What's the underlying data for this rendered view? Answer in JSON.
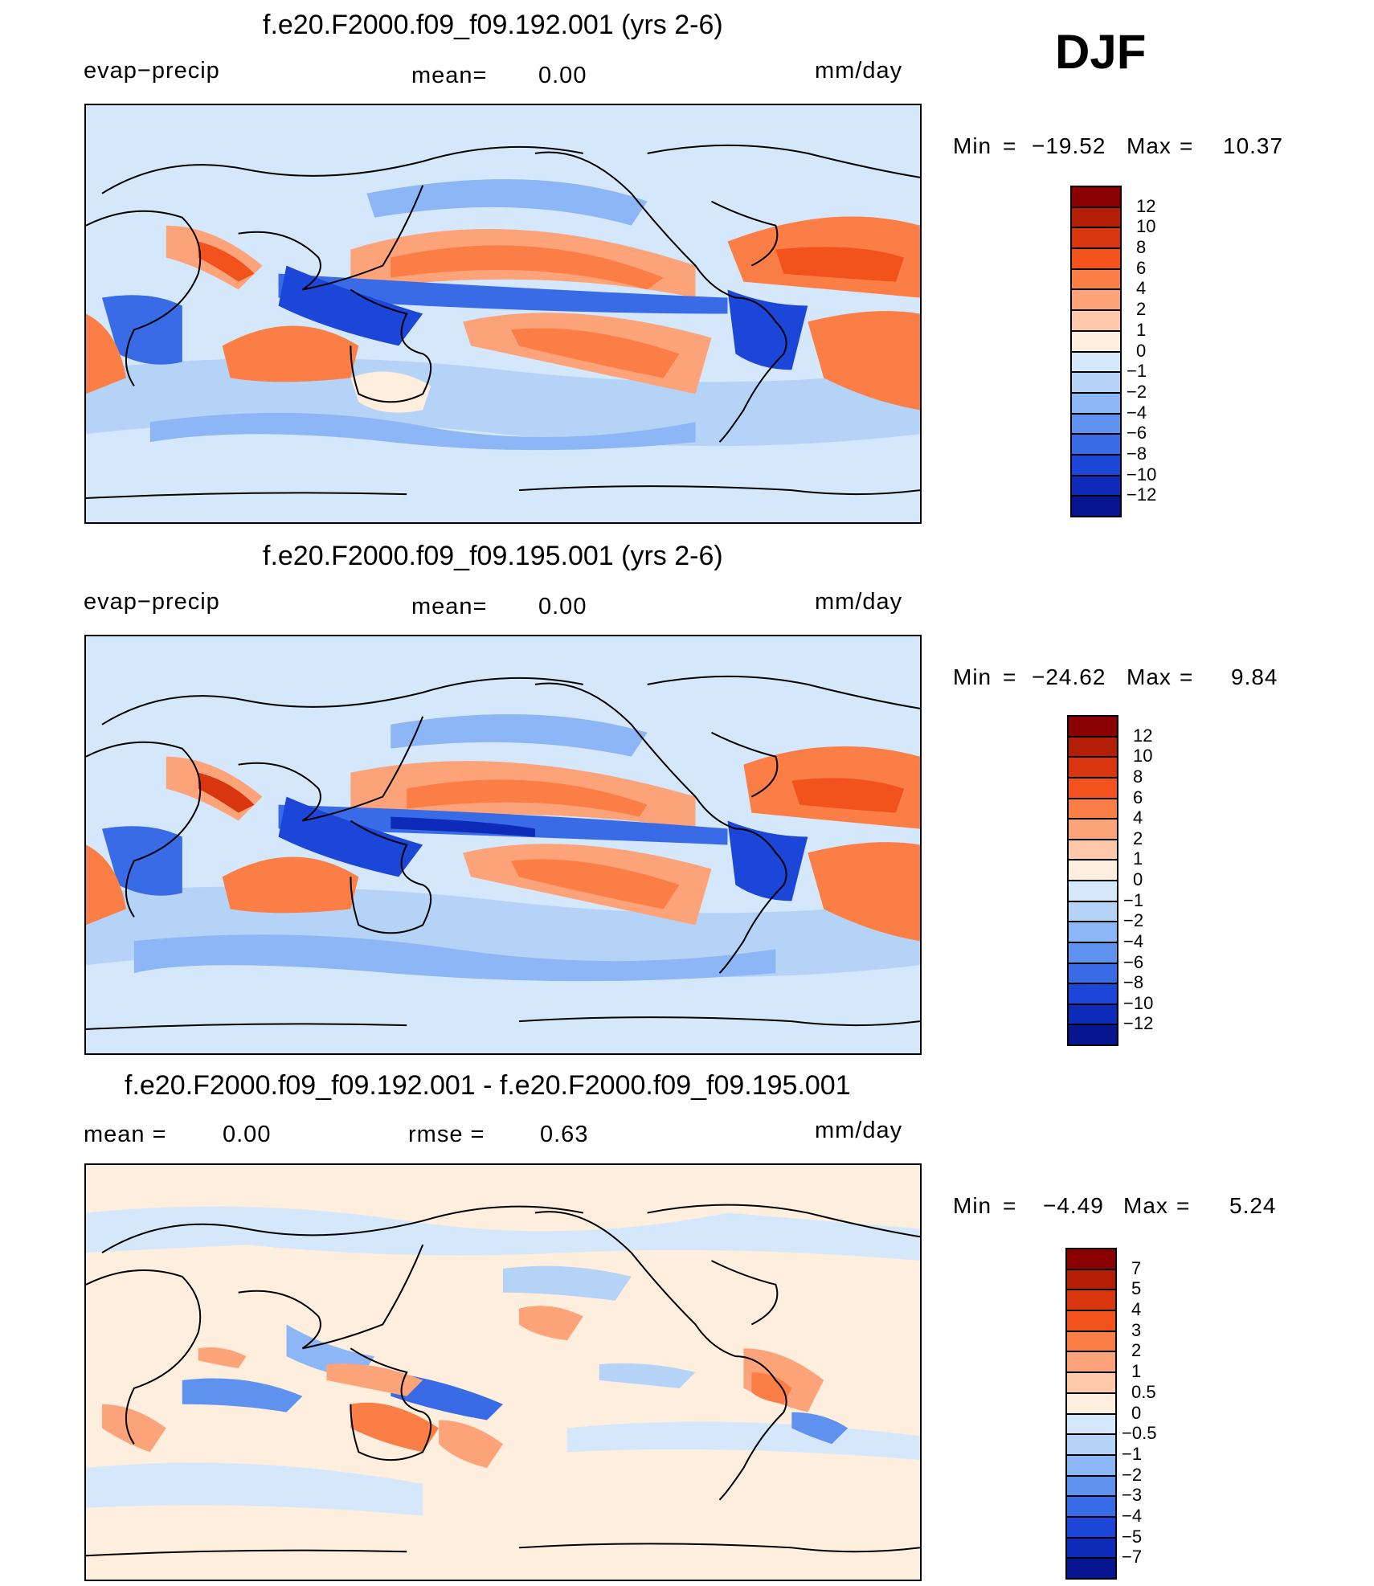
{
  "season_label": "DJF",
  "panels": [
    {
      "title": "f.e20.F2000.f09_f09.192.001 (yrs 2-6)",
      "left_label": "evap−precip",
      "mean_label": "mean=",
      "mean_value": "0.00",
      "units": "mm/day",
      "min_label": "Min",
      "eq1": "=",
      "min_value": "−19.52",
      "max_label": "Max",
      "eq2": "=",
      "max_value": "10.37",
      "colorbar": {
        "colors": [
          "#8b0000",
          "#b41e06",
          "#d8360e",
          "#f2521c",
          "#fa7e45",
          "#fca37a",
          "#fdc9aa",
          "#feeedd",
          "#d5e8fb",
          "#b4d3f7",
          "#8cb6f5",
          "#5f92ef",
          "#3a6be6",
          "#1c46d8",
          "#0e2ab8",
          "#071590"
        ],
        "labels": [
          "12",
          "10",
          "8",
          "6",
          "4",
          "2",
          "1",
          "0",
          "−1",
          "−2",
          "−4",
          "−6",
          "−8",
          "−10",
          "−12"
        ]
      }
    },
    {
      "title": "f.e20.F2000.f09_f09.195.001 (yrs 2-6)",
      "left_label": "evap−precip",
      "mean_label": "mean=",
      "mean_value": "0.00",
      "units": "mm/day",
      "min_label": "Min",
      "eq1": "=",
      "min_value": "−24.62",
      "max_label": "Max",
      "eq2": "=",
      "max_value": "9.84",
      "colorbar": {
        "colors": [
          "#8b0000",
          "#b41e06",
          "#d8360e",
          "#f2521c",
          "#fa7e45",
          "#fca37a",
          "#fdc9aa",
          "#feeedd",
          "#d5e8fb",
          "#b4d3f7",
          "#8cb6f5",
          "#5f92ef",
          "#3a6be6",
          "#1c46d8",
          "#0e2ab8",
          "#071590"
        ],
        "labels": [
          "12",
          "10",
          "8",
          "6",
          "4",
          "2",
          "1",
          "0",
          "−1",
          "−2",
          "−4",
          "−6",
          "−8",
          "−10",
          "−12"
        ]
      }
    },
    {
      "title": "f.e20.F2000.f09_f09.192.001 - f.e20.F2000.f09_f09.195.001",
      "left_label": "mean  =",
      "left_value": "0.00",
      "mean_label": "rmse  =",
      "mean_value": "0.63",
      "units": "mm/day",
      "min_label": "Min",
      "eq1": "=",
      "min_value": "−4.49",
      "max_label": "Max",
      "eq2": "=",
      "max_value": "5.24",
      "colorbar": {
        "colors": [
          "#8b0000",
          "#b41e06",
          "#d8360e",
          "#f2521c",
          "#fa7e45",
          "#fca37a",
          "#fdc9aa",
          "#feeedd",
          "#d5e8fb",
          "#b4d3f7",
          "#8cb6f5",
          "#5f92ef",
          "#3a6be6",
          "#1c46d8",
          "#0e2ab8",
          "#071590"
        ],
        "labels": [
          "7",
          "5",
          "4",
          "3",
          "2",
          "1",
          "0.5",
          "0",
          "−0.5",
          "−1",
          "−2",
          "−3",
          "−4",
          "−5",
          "−7"
        ]
      }
    }
  ]
}
